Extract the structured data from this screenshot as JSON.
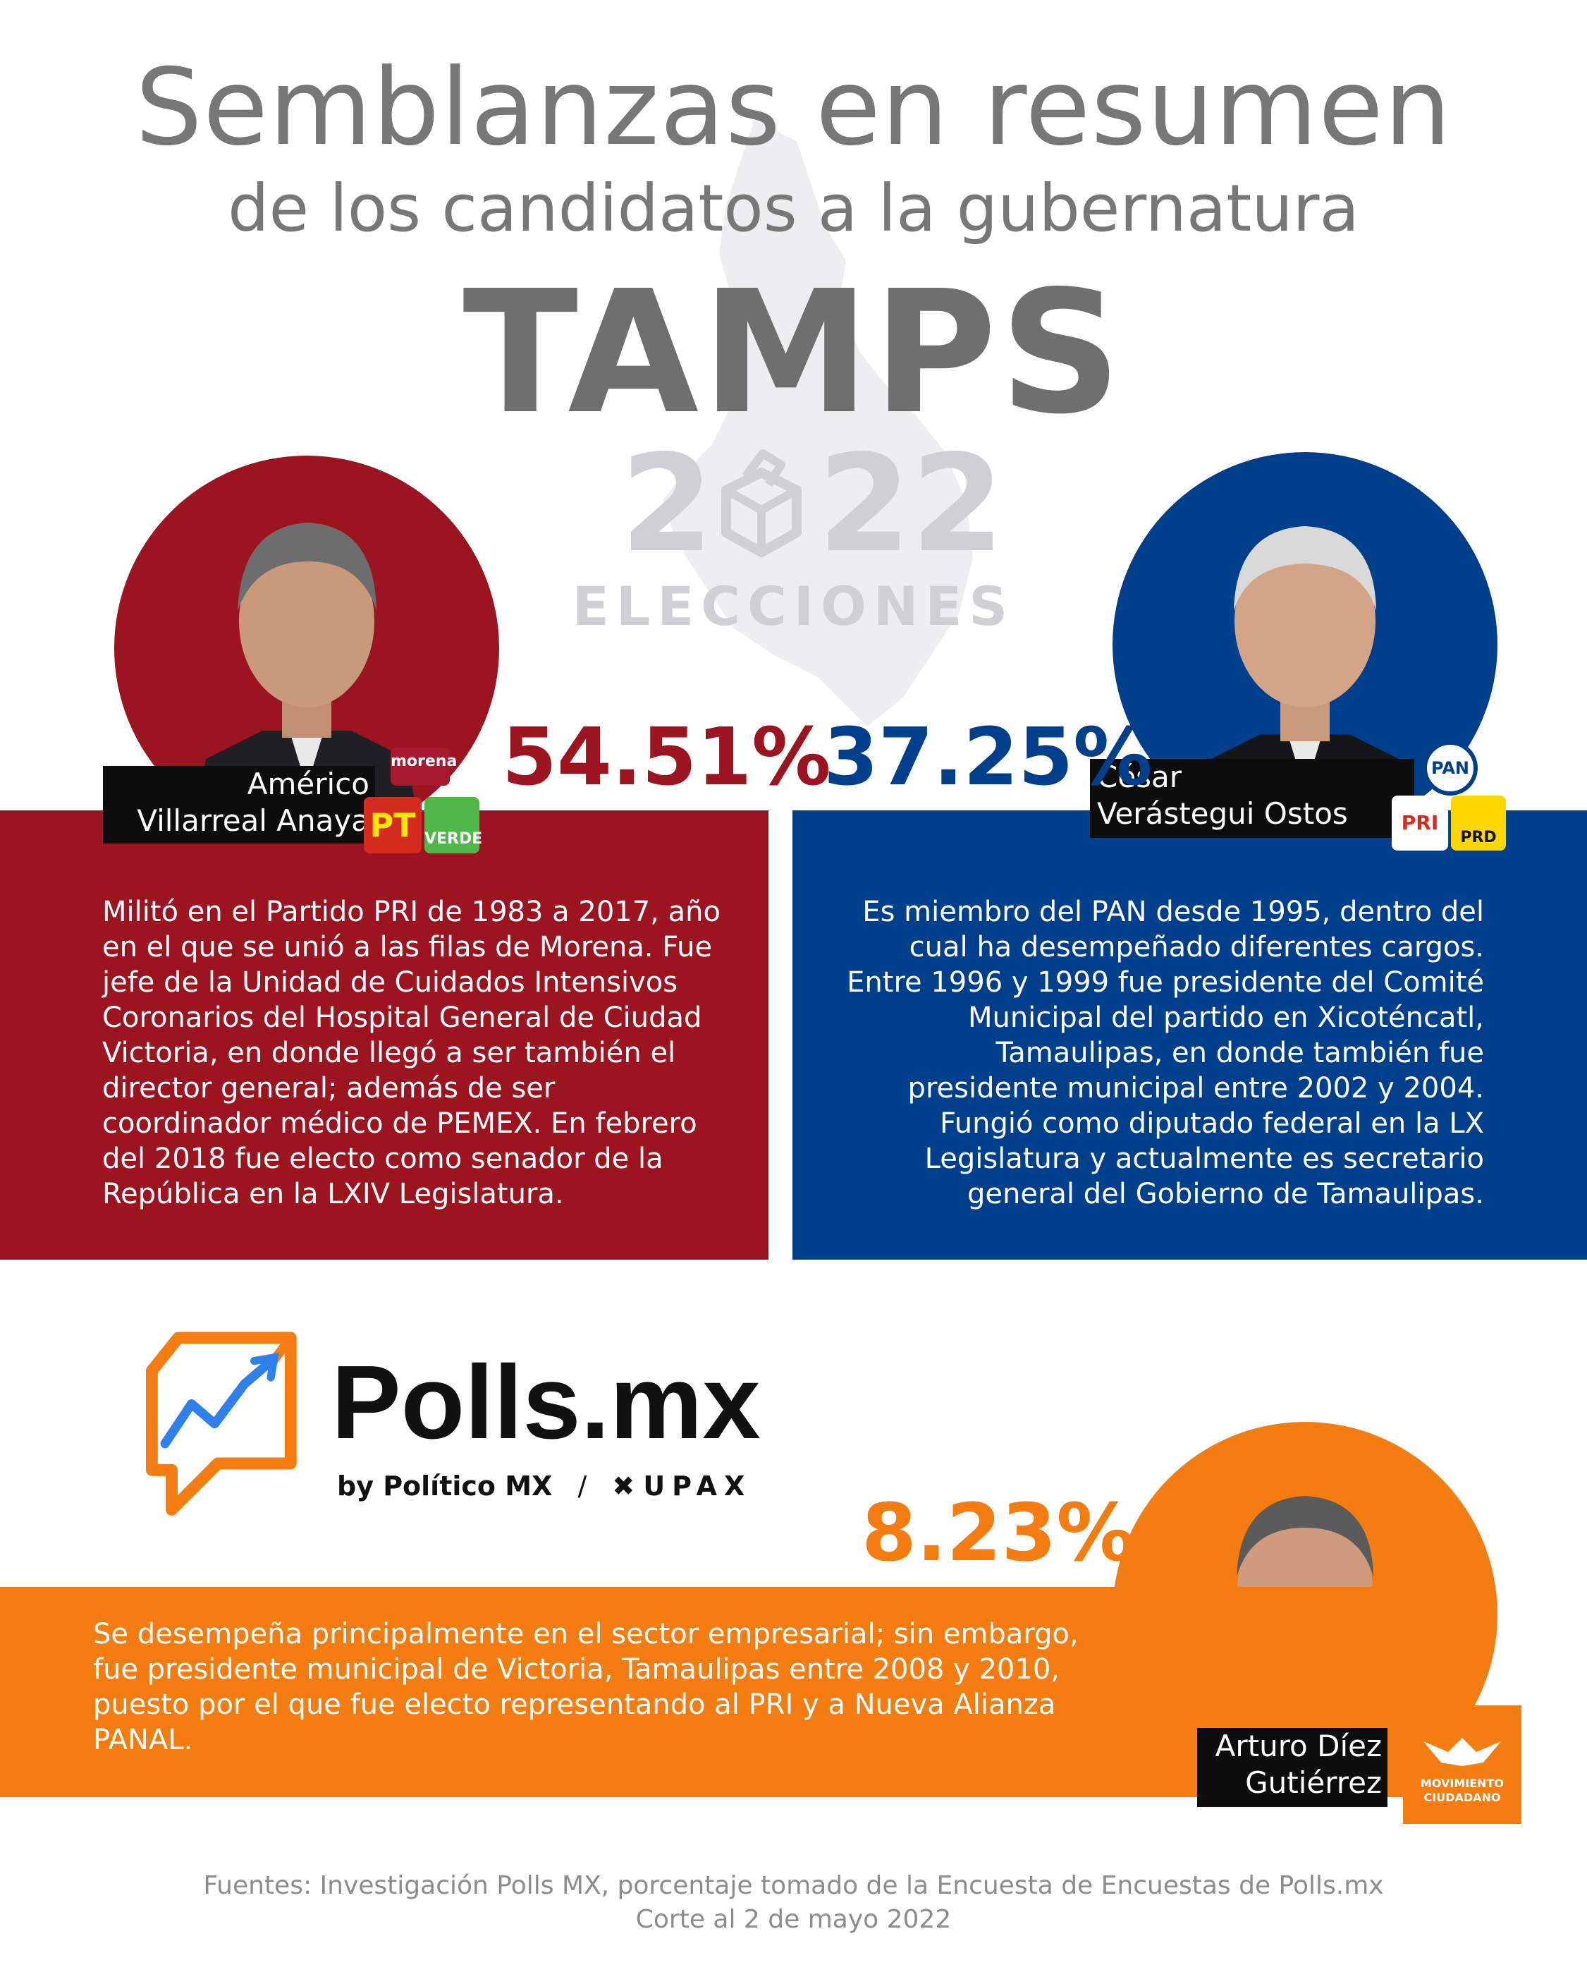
{
  "header": {
    "title_line1": "Semblanzas en resumen",
    "title_line2": "de los candidatos a la gubernatura",
    "state": "TAMPS",
    "year_left": "2",
    "year_right": "22",
    "elections": "ELECCIONES"
  },
  "colors": {
    "morena_red": "#9b1420",
    "pan_blue": "#003f8c",
    "mc_orange": "#f57c10",
    "gray_text": "#777777"
  },
  "candidates": [
    {
      "name_line1": "Américo",
      "name_line2": "Villarreal Anaya",
      "percent": "54.51%",
      "parties": [
        "morena",
        "PT",
        "VERDE"
      ],
      "bio": "Militó en el Partido PRI de 1983 a 2017, año en el que se unió a las filas de Morena. Fue jefe de la Unidad de Cuidados Intensivos Coronarios del Hospital General de Ciudad Victoria, en donde llegó a ser también el director general; además de ser coordinador médico de PEMEX. En febrero del 2018 fue electo como senador de la República en la LXIV Legislatura."
    },
    {
      "name_line1": "César",
      "name_line2": "Verástegui Ostos",
      "percent": "37.25%",
      "parties": [
        "PAN",
        "PRI",
        "PRD"
      ],
      "bio": "Es miembro del PAN desde 1995, dentro del cual ha desempeñado diferentes cargos. Entre 1996 y 1999 fue presidente del Comité Municipal del partido en Xicoténcatl, Tamaulipas, en donde también fue presidente municipal entre 2002 y 2004. Fungió como diputado federal en la LX Legislatura y actualmente es secretario general del Gobierno de Tamaulipas."
    },
    {
      "name_line1": "Arturo Díez",
      "name_line2": "Gutiérrez",
      "percent": "8.23%",
      "parties": [
        "MOVIMIENTO",
        "CIUDADANO"
      ],
      "bio": "Se desempeña principalmente en el sector empresarial; sin embargo, fue presidente municipal de Victoria, Tamaulipas entre 2008 y 2010, puesto por el que fue electo representando al PRI y a Nueva Alianza PANAL."
    }
  ],
  "brand": {
    "name": "Polls.mx",
    "by": "by Político MX",
    "separator": "/",
    "partner": "UPAX"
  },
  "footer": {
    "line1": "Fuentes: Investigación Polls MX, porcentaje tomado de la Encuesta de Encuestas de Polls.mx",
    "line2": "Corte al 2 de mayo 2022"
  }
}
